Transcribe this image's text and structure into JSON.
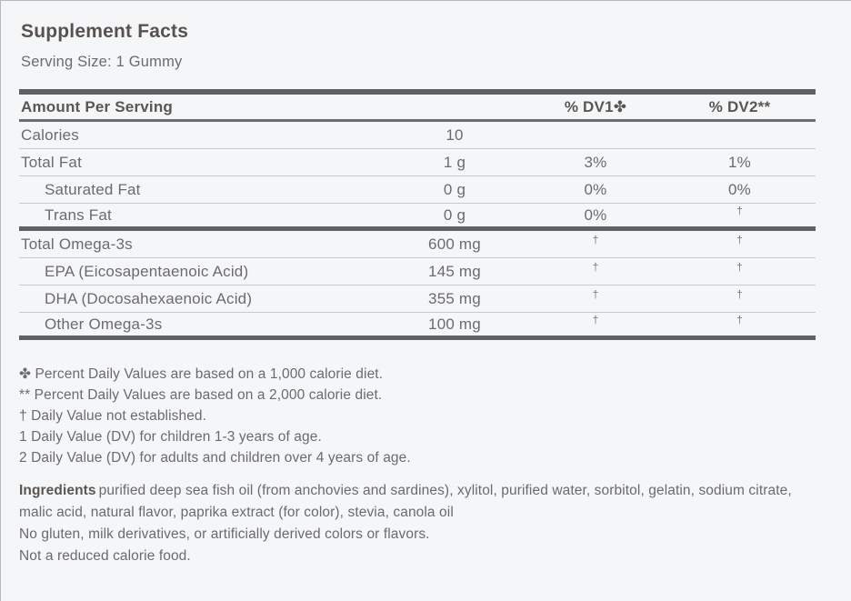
{
  "page": {
    "title": "Supplement Facts",
    "serving_size": "Serving Size: 1 Gummy"
  },
  "table": {
    "header": {
      "amount": "Amount Per Serving",
      "dv1": "% DV1✤",
      "dv2": "% DV2**"
    },
    "rows": [
      {
        "name": "Calories",
        "amount": "10",
        "dv1": "",
        "dv2": "",
        "indent": false,
        "thick_after": false
      },
      {
        "name": "Total Fat",
        "amount": "1 g",
        "dv1": "3%",
        "dv2": "1%",
        "indent": false,
        "thick_after": false
      },
      {
        "name": "Saturated Fat",
        "amount": "0 g",
        "dv1": "0%",
        "dv2": "0%",
        "indent": true,
        "thick_after": false
      },
      {
        "name": "Trans Fat",
        "amount": "0 g",
        "dv1": "0%",
        "dv2": "†",
        "indent": true,
        "thick_after": true
      },
      {
        "name": "Total Omega-3s",
        "amount": "600 mg",
        "dv1": "†",
        "dv2": "†",
        "indent": false,
        "thick_after": false
      },
      {
        "name": "EPA (Eicosapentaenoic Acid)",
        "amount": "145 mg",
        "dv1": "†",
        "dv2": "†",
        "indent": true,
        "thick_after": false
      },
      {
        "name": "DHA (Docosahexaenoic Acid)",
        "amount": "355 mg",
        "dv1": "†",
        "dv2": "†",
        "indent": true,
        "thick_after": false
      },
      {
        "name": "Other Omega-3s",
        "amount": "100 mg",
        "dv1": "†",
        "dv2": "†",
        "indent": true,
        "thick_after": true
      }
    ]
  },
  "footnotes": [
    "✤ Percent Daily Values are based on a 1,000 calorie diet.",
    "** Percent Daily Values are based on a 2,000 calorie diet.",
    "† Daily Value not established.",
    "1 Daily Value (DV) for children 1-3 years of age.",
    "2 Daily Value (DV) for adults and children over 4 years of age."
  ],
  "ingredients": {
    "label": "Ingredients",
    "text": "purified deep sea fish oil (from anchovies and sardines), xylitol, purified water, sorbitol, gelatin, sodium citrate, malic acid, natural flavor, paprika extract (for color), stevia, canola oil"
  },
  "notes": [
    "No gluten, milk derivatives, or artificially derived colors or flavors.",
    "Not a reduced calorie food."
  ],
  "colors": {
    "background": "#f5f6f8",
    "heading_text": "#57524f",
    "body_text": "#6b6b6e",
    "thick_bar": "#5e6064",
    "thin_separator": "#c7cacd"
  }
}
